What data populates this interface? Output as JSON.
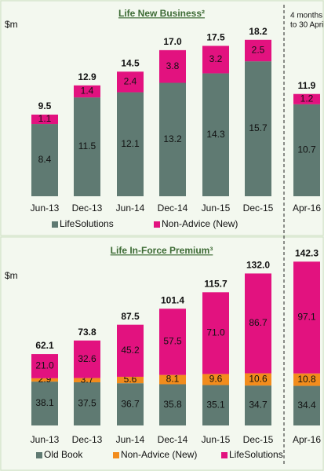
{
  "chart_data": [
    {
      "type": "bar",
      "stacked": true,
      "title": "Life New Business²",
      "unit": "$m",
      "annotation": [
        "4 months",
        "to 30 April"
      ],
      "categories": [
        "Jun-13",
        "Dec-13",
        "Jun-14",
        "Dec-14",
        "Jun-15",
        "Dec-15",
        "Apr-16"
      ],
      "series": [
        {
          "name": "LifeSolutions",
          "color": "#5f7a72",
          "values": [
            8.4,
            11.5,
            12.1,
            13.2,
            14.3,
            15.7,
            10.7
          ]
        },
        {
          "name": "Non-Advice (New)",
          "color": "#e2127f",
          "values": [
            1.1,
            1.4,
            2.4,
            3.8,
            3.2,
            2.5,
            1.2
          ]
        }
      ],
      "totals": {
        "values": [
          9.5,
          12.9,
          14.5,
          17.0,
          17.5,
          18.2,
          11.9
        ],
        "value_labels": [
          "9.5",
          "12.9",
          "14.5",
          "17.0",
          "17.5",
          "18.2",
          "11.9"
        ]
      },
      "ylim": [
        0,
        19
      ]
    },
    {
      "type": "bar",
      "stacked": true,
      "title": "Life In-Force Premium³",
      "unit": "$m",
      "categories": [
        "Jun-13",
        "Dec-13",
        "Jun-14",
        "Dec-14",
        "Jun-15",
        "Dec-15",
        "Apr-16"
      ],
      "series": [
        {
          "name": "Old Book",
          "color": "#5f7a72",
          "values": [
            38.1,
            37.5,
            36.7,
            35.8,
            35.1,
            34.7,
            34.4
          ]
        },
        {
          "name": "Non-Advice (New)",
          "color": "#f28c1c",
          "values": [
            2.9,
            3.7,
            5.6,
            8.1,
            9.6,
            10.6,
            10.8
          ]
        },
        {
          "name": "LifeSolutions",
          "color": "#e2127f",
          "values": [
            21.0,
            32.6,
            45.2,
            57.5,
            71.0,
            86.7,
            97.1
          ],
          "value_labels": [
            "21.0",
            "32.6",
            "45.2",
            "57.5",
            "71.0",
            "86.7",
            "97.1"
          ]
        }
      ],
      "totals": {
        "values": [
          62.1,
          73.8,
          87.5,
          101.4,
          115.7,
          132.0,
          142.3
        ],
        "value_labels": [
          "62.1",
          "73.8",
          "87.5",
          "101.4",
          "115.7",
          "132.0",
          "142.3"
        ]
      },
      "ylim": [
        0,
        150
      ]
    }
  ]
}
